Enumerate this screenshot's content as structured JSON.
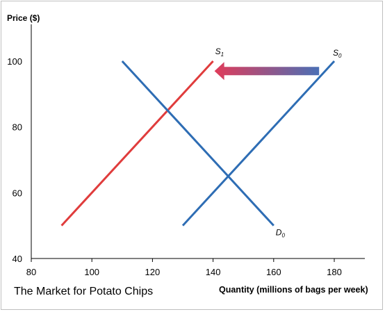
{
  "chart_data": {
    "type": "line",
    "title": "The Market for Potato Chips",
    "ylabel": "Price ($)",
    "xlabel": "Quantity (millions of bags per week)",
    "xlim": [
      80,
      190
    ],
    "ylim": [
      40,
      110
    ],
    "x_ticks": [
      "80",
      "100",
      "120",
      "140",
      "160",
      "180"
    ],
    "y_ticks": [
      "40",
      "60",
      "80",
      "100"
    ],
    "grid": false,
    "series": [
      {
        "name": "S",
        "sub": "0",
        "color": "#2e6db4",
        "x": [
          130,
          180
        ],
        "y": [
          50,
          100
        ]
      },
      {
        "name": "S",
        "sub": "1",
        "color": "#e03c3c",
        "x": [
          90,
          140
        ],
        "y": [
          50,
          100
        ]
      },
      {
        "name": "D",
        "sub": "0",
        "color": "#2e6db4",
        "x": [
          110,
          160
        ],
        "y": [
          100,
          50
        ]
      }
    ],
    "annotation": {
      "type": "arrow",
      "from": [
        175,
        97
      ],
      "to": [
        140,
        97
      ],
      "color_start": "#e03c5a",
      "color_end": "#4a6fb5"
    }
  }
}
